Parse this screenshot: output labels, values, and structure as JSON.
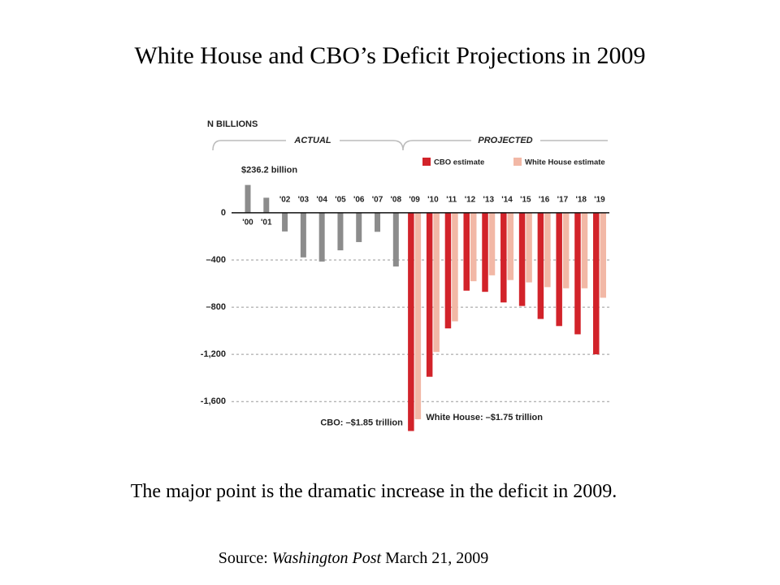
{
  "chart_data": {
    "type": "bar",
    "title": "White House and CBO’s Deficit Projections in 2009",
    "y_label": "N BILLIONS",
    "group_labels": [
      "ACTUAL",
      "PROJECTED"
    ],
    "categories": [
      "'00",
      "'01",
      "'02",
      "'03",
      "'04",
      "'05",
      "'06",
      "'07",
      "'08",
      "'09",
      "'10",
      "'11",
      "'12",
      "'13",
      "'14",
      "'15",
      "'16",
      "'17",
      "'18",
      "'19"
    ],
    "series": [
      {
        "name": "ACTUAL",
        "color": "#8c8c8c",
        "values": [
          236.2,
          128,
          -158,
          -378,
          -413,
          -318,
          -248,
          -161,
          -455,
          null,
          null,
          null,
          null,
          null,
          null,
          null,
          null,
          null,
          null,
          null
        ],
        "value_labels": [
          "$236.2 billion",
          null,
          null,
          null,
          null,
          null,
          null,
          null,
          null,
          null,
          null,
          null,
          null,
          null,
          null,
          null,
          null,
          null,
          null,
          null
        ]
      },
      {
        "name": "CBO estimate",
        "color": "#d2232a",
        "values": [
          null,
          null,
          null,
          null,
          null,
          null,
          null,
          null,
          null,
          -1850,
          -1390,
          -980,
          -660,
          -670,
          -760,
          -790,
          -900,
          -960,
          -1030,
          -1200
        ],
        "value_labels": [
          null,
          null,
          null,
          null,
          null,
          null,
          null,
          null,
          null,
          "CBO: –$1.85 trillion",
          null,
          null,
          null,
          null,
          null,
          null,
          null,
          null,
          null,
          null
        ]
      },
      {
        "name": "White House estimate",
        "color": "#f2b8a6",
        "values": [
          null,
          null,
          null,
          null,
          null,
          null,
          null,
          null,
          null,
          -1750,
          -1180,
          -920,
          -580,
          -530,
          -570,
          -590,
          -630,
          -640,
          -640,
          -720
        ],
        "value_labels": [
          null,
          null,
          null,
          null,
          null,
          null,
          null,
          null,
          null,
          "White House: –$1.75 trillion",
          null,
          null,
          null,
          null,
          null,
          null,
          null,
          null,
          null,
          null
        ]
      }
    ],
    "ylim": [
      -1950,
      840
    ],
    "yticks": [
      0,
      {
        "value": -400,
        "label": "–400"
      },
      {
        "value": -800,
        "label": "–800"
      },
      {
        "value": -1200,
        "label": "-1,200"
      },
      {
        "value": -1600,
        "label": "-1,600"
      }
    ],
    "grid": true
  },
  "caption": "The major point is the dramatic increase in the deficit in 2009.",
  "source": {
    "prefix": "Source:",
    "publication": "Washington Post",
    "date": "March 21, 2009"
  }
}
